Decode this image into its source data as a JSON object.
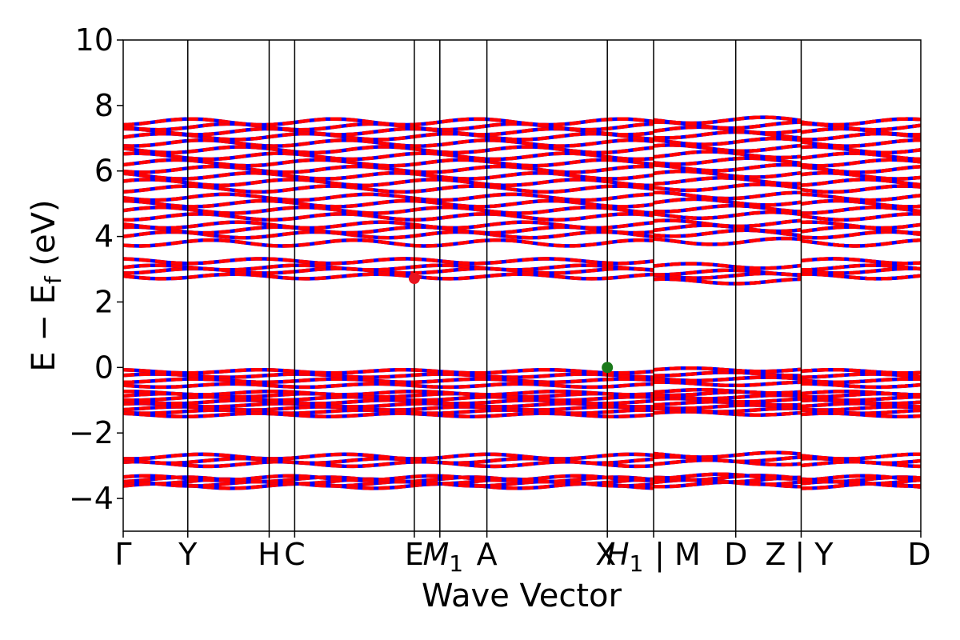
{
  "chart_data": {
    "type": "line",
    "xlabel": "Wave Vector",
    "ylabel": "E − E_f (eV)",
    "ylabel_parts": {
      "main": "E − E",
      "sub": "f",
      "unit": " (eV)"
    },
    "ylim": [
      -5,
      10
    ],
    "yticks": [
      -4,
      -2,
      0,
      2,
      4,
      6,
      8,
      10
    ],
    "ytick_labels": [
      "−4",
      "−2",
      "0",
      "2",
      "4",
      "6",
      "8",
      "10"
    ],
    "xlim": [
      0,
      100
    ],
    "kpoints": [
      {
        "label": "Γ",
        "x": 0
      },
      {
        "label": "Y",
        "x": 8.1
      },
      {
        "label": "H",
        "x": 18.3
      },
      {
        "label": "C",
        "x": 21.5
      },
      {
        "label": "E",
        "x": 36.5
      },
      {
        "label": "M",
        "sub": "1",
        "x": 39.7
      },
      {
        "label": "A",
        "x": 45.6
      },
      {
        "label": "X",
        "x": 60.7
      },
      {
        "label": "H",
        "sub": "1",
        "x": 60.7
      },
      {
        "label": "| M",
        "x": 66.5
      },
      {
        "label": "D",
        "x": 76.8
      },
      {
        "label": "Z",
        "x": 85.0
      },
      {
        "label": "| Y",
        "x": 85.0
      },
      {
        "label": "D",
        "x": 100
      }
    ],
    "vlines_x": [
      8.1,
      18.3,
      21.5,
      36.5,
      39.7,
      45.6,
      60.7,
      66.5,
      76.8,
      85.0
    ],
    "segment_breaks_x": [
      0,
      66.5,
      85.0,
      100
    ],
    "markers": [
      {
        "name": "cbm",
        "x": 36.5,
        "y": 2.72,
        "color": "#e8141e"
      },
      {
        "name": "vbm",
        "x": 60.7,
        "y": 0.0,
        "color": "#1a7a1a"
      }
    ],
    "spin_colors": {
      "up": "#0000ff",
      "down": "#ff0000"
    },
    "band_groups": [
      {
        "name": "deep-valence",
        "levels": [
          -3.62,
          -3.55,
          -3.48,
          -3.42,
          -3.38
        ]
      },
      {
        "name": "valence-lower",
        "levels": [
          -2.95,
          -2.85,
          -2.72
        ]
      },
      {
        "name": "valence-manifold",
        "levels": [
          -1.45,
          -1.35,
          -1.25,
          -1.15,
          -1.05,
          -0.95,
          -0.85,
          -0.78,
          -0.55,
          -0.4,
          -0.25,
          -0.12
        ]
      },
      {
        "name": "conduction-low",
        "levels": [
          2.78,
          2.95,
          3.05,
          3.25
        ]
      },
      {
        "name": "conduction-manifold",
        "levels": [
          3.8,
          4.05,
          4.2,
          4.35,
          4.6,
          4.8,
          5.0,
          5.2,
          5.45,
          5.65,
          5.85,
          6.05,
          6.25,
          6.45,
          6.65,
          6.85,
          7.05,
          7.2,
          7.35,
          7.5
        ]
      }
    ]
  }
}
